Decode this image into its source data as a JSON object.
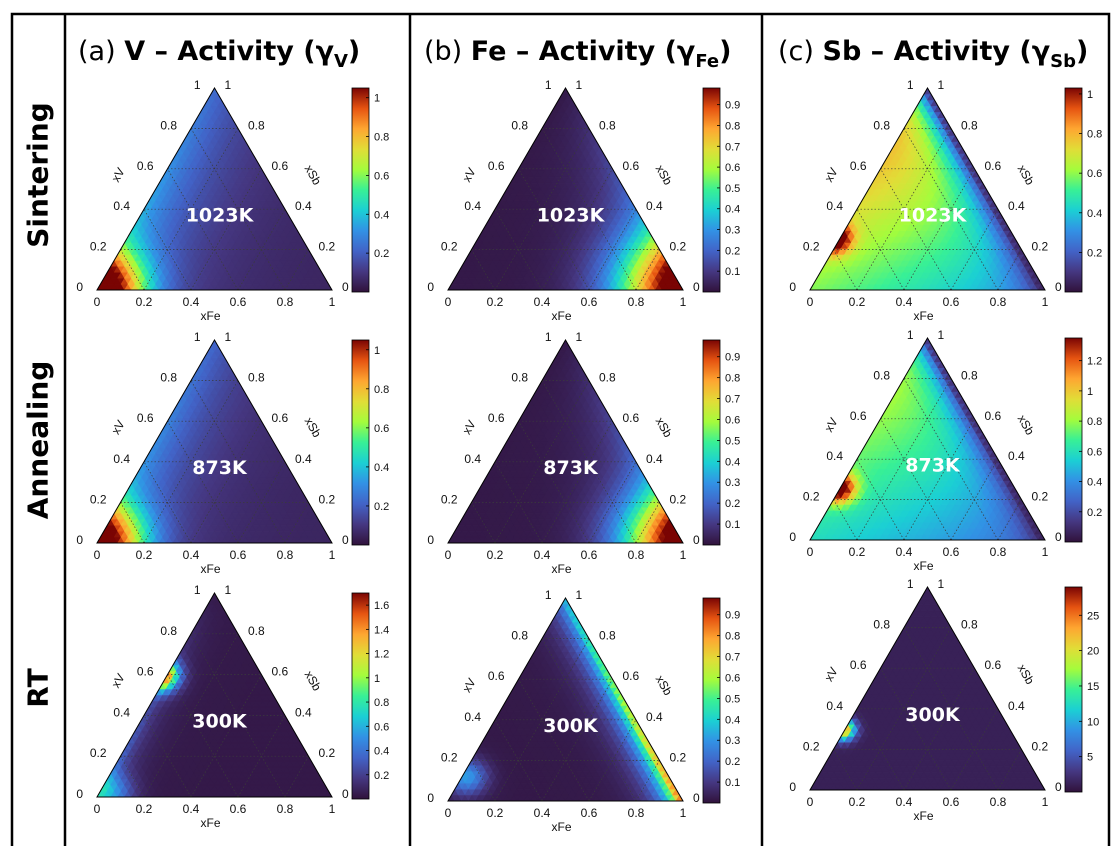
{
  "row_labels": [
    "Sintering",
    "Annealing",
    "RT"
  ],
  "columns": [
    {
      "id": "a",
      "letter": "(a)",
      "element": "V",
      "title": "V – Activity (γ",
      "subscript": "V"
    },
    {
      "id": "b",
      "letter": "(b)",
      "element": "Fe",
      "title": "Fe – Activity (γ",
      "subscript": "Fe"
    },
    {
      "id": "c",
      "letter": "(c)",
      "element": "Sb",
      "title": "Sb – Activity (γ",
      "subscript": "Sb"
    }
  ],
  "colormap": "turbo",
  "colors": {
    "frame": "#000000",
    "grid": "#3a3a3a",
    "low": "#30123b",
    "high": "#7a0403"
  },
  "chart_data": [
    {
      "type": "heatmap",
      "subtype": "ternary",
      "id": "a-sintering",
      "row": "Sintering",
      "column": "a",
      "temperature": "1023K",
      "component": "V",
      "axes": {
        "bottom": "xFe",
        "left": "xV",
        "right": "xSb"
      },
      "ticks": {
        "bottom": [
          "0",
          "0.2",
          "0.4",
          "0.6",
          "0.8",
          "1"
        ],
        "left": [
          "1",
          "0.8",
          "0.6",
          "0.4",
          "0.2",
          "0"
        ],
        "right": [
          "1",
          "0.8",
          "0.6",
          "0.4",
          "0.2",
          "0"
        ]
      },
      "colorbar": {
        "range": [
          0,
          1.05
        ],
        "ticks": [
          "0.2",
          "0.4",
          "0.6",
          "0.8",
          "1"
        ]
      }
    },
    {
      "type": "heatmap",
      "subtype": "ternary",
      "id": "b-sintering",
      "row": "Sintering",
      "column": "b",
      "temperature": "1023K",
      "component": "Fe",
      "axes": {
        "bottom": "xFe",
        "left": "xV",
        "right": "xSb"
      },
      "ticks": {
        "bottom": [
          "0",
          "0.2",
          "0.4",
          "0.6",
          "0.8",
          "1"
        ],
        "left": [
          "1",
          "0.8",
          "0.6",
          "0.4",
          "0.2",
          "0"
        ],
        "right": [
          "1",
          "0.8",
          "0.6",
          "0.4",
          "0.2",
          "0"
        ]
      },
      "colorbar": {
        "range": [
          0,
          0.98
        ],
        "ticks": [
          "0.1",
          "0.2",
          "0.3",
          "0.4",
          "0.5",
          "0.6",
          "0.7",
          "0.8",
          "0.9"
        ]
      }
    },
    {
      "type": "heatmap",
      "subtype": "ternary",
      "id": "c-sintering",
      "row": "Sintering",
      "column": "c",
      "temperature": "1023K",
      "component": "Sb",
      "axes": {
        "bottom": "xFe",
        "left": "xV",
        "right": "xSb"
      },
      "ticks": {
        "bottom": [
          "0",
          "0.2",
          "0.4",
          "0.6",
          "0.8",
          "1"
        ],
        "left": [
          "1",
          "0.8",
          "0.6",
          "0.4",
          "0.2",
          "0"
        ],
        "right": [
          "1",
          "0.8",
          "0.6",
          "0.4",
          "0.2",
          "0"
        ]
      },
      "colorbar": {
        "range": [
          0,
          1.03
        ],
        "ticks": [
          "0.2",
          "0.4",
          "0.6",
          "0.8",
          "1"
        ]
      }
    },
    {
      "type": "heatmap",
      "subtype": "ternary",
      "id": "a-annealing",
      "row": "Annealing",
      "column": "a",
      "temperature": "873K",
      "component": "V",
      "axes": {
        "bottom": "xFe",
        "left": "xV",
        "right": "xSb"
      },
      "ticks": {
        "bottom": [
          "0",
          "0.2",
          "0.4",
          "0.6",
          "0.8",
          "1"
        ],
        "left": [
          "1",
          "0.8",
          "0.6",
          "0.4",
          "0.2",
          "0"
        ],
        "right": [
          "1",
          "0.8",
          "0.6",
          "0.4",
          "0.2",
          "0"
        ]
      },
      "colorbar": {
        "range": [
          0,
          1.05
        ],
        "ticks": [
          "0.2",
          "0.4",
          "0.6",
          "0.8",
          "1"
        ]
      }
    },
    {
      "type": "heatmap",
      "subtype": "ternary",
      "id": "b-annealing",
      "row": "Annealing",
      "column": "b",
      "temperature": "873K",
      "component": "Fe",
      "axes": {
        "bottom": "xFe",
        "left": "xV",
        "right": "xSb"
      },
      "ticks": {
        "bottom": [
          "0",
          "0.2",
          "0.4",
          "0.6",
          "0.8",
          "1"
        ],
        "left": [
          "1",
          "0.8",
          "0.6",
          "0.4",
          "0.2",
          "0"
        ],
        "right": [
          "1",
          "0.8",
          "0.6",
          "0.4",
          "0.2",
          "0"
        ]
      },
      "colorbar": {
        "range": [
          0,
          0.98
        ],
        "ticks": [
          "0.1",
          "0.2",
          "0.3",
          "0.4",
          "0.5",
          "0.6",
          "0.7",
          "0.8",
          "0.9"
        ]
      }
    },
    {
      "type": "heatmap",
      "subtype": "ternary",
      "id": "c-annealing",
      "row": "Annealing",
      "column": "c",
      "temperature": "873K",
      "component": "Sb",
      "axes": {
        "bottom": "xFe",
        "left": "xV",
        "right": "xSb"
      },
      "ticks": {
        "bottom": [
          "0",
          "0.2",
          "0.4",
          "0.6",
          "0.8",
          "1"
        ],
        "left": [
          "1",
          "0.8",
          "0.6",
          "0.4",
          "0.2",
          "0"
        ],
        "right": [
          "1",
          "0.8",
          "0.6",
          "0.4",
          "0.2",
          "0"
        ]
      },
      "colorbar": {
        "range": [
          0,
          1.35
        ],
        "ticks": [
          "0.2",
          "0.4",
          "0.6",
          "0.8",
          "1",
          "1.2"
        ]
      }
    },
    {
      "type": "heatmap",
      "subtype": "ternary",
      "id": "a-rt",
      "row": "RT",
      "column": "a",
      "temperature": "300K",
      "component": "V",
      "axes": {
        "bottom": "xFe",
        "left": "xV",
        "right": "xSb"
      },
      "ticks": {
        "bottom": [
          "0",
          "0.2",
          "0.4",
          "0.6",
          "0.8",
          "1"
        ],
        "left": [
          "1",
          "0.8",
          "0.6",
          "0.4",
          "0.2",
          "0"
        ],
        "right": [
          "1",
          "0.8",
          "0.6",
          "0.4",
          "0.2",
          "0"
        ]
      },
      "colorbar": {
        "range": [
          0,
          1.7
        ],
        "ticks": [
          "0.2",
          "0.4",
          "0.6",
          "0.8",
          "1",
          "1.2",
          "1.4",
          "1.6"
        ]
      }
    },
    {
      "type": "heatmap",
      "subtype": "ternary",
      "id": "b-rt",
      "row": "RT",
      "column": "b",
      "temperature": "300K",
      "component": "Fe",
      "axes": {
        "bottom": "xFe",
        "left": "xV",
        "right": "xSb"
      },
      "ticks": {
        "bottom": [
          "0",
          "0.2",
          "0.4",
          "0.6",
          "0.8",
          "1"
        ],
        "left": [
          "1",
          "0.8",
          "0.6",
          "0.4",
          "0.2",
          "0"
        ],
        "right": [
          "1",
          "0.8",
          "0.6",
          "0.4",
          "0.2",
          "0"
        ]
      },
      "colorbar": {
        "range": [
          0,
          0.98
        ],
        "ticks": [
          "0.1",
          "0.2",
          "0.3",
          "0.4",
          "0.5",
          "0.6",
          "0.7",
          "0.8",
          "0.9"
        ]
      }
    },
    {
      "type": "heatmap",
      "subtype": "ternary",
      "id": "c-rt",
      "row": "RT",
      "column": "c",
      "temperature": "300K",
      "component": "Sb",
      "axes": {
        "bottom": "xFe",
        "left": "xV",
        "right": "xSb"
      },
      "ticks": {
        "bottom": [
          "0",
          "0.2",
          "0.4",
          "0.6",
          "0.8",
          "1"
        ],
        "left": [
          "1",
          "0.8",
          "0.6",
          "0.4",
          "0.2",
          "0"
        ],
        "right": [
          "1",
          "0.8",
          "0.6",
          "0.4",
          "0.2",
          "0"
        ]
      },
      "colorbar": {
        "range": [
          0,
          29
        ],
        "ticks": [
          "5",
          "10",
          "15",
          "20",
          "25"
        ]
      }
    }
  ]
}
